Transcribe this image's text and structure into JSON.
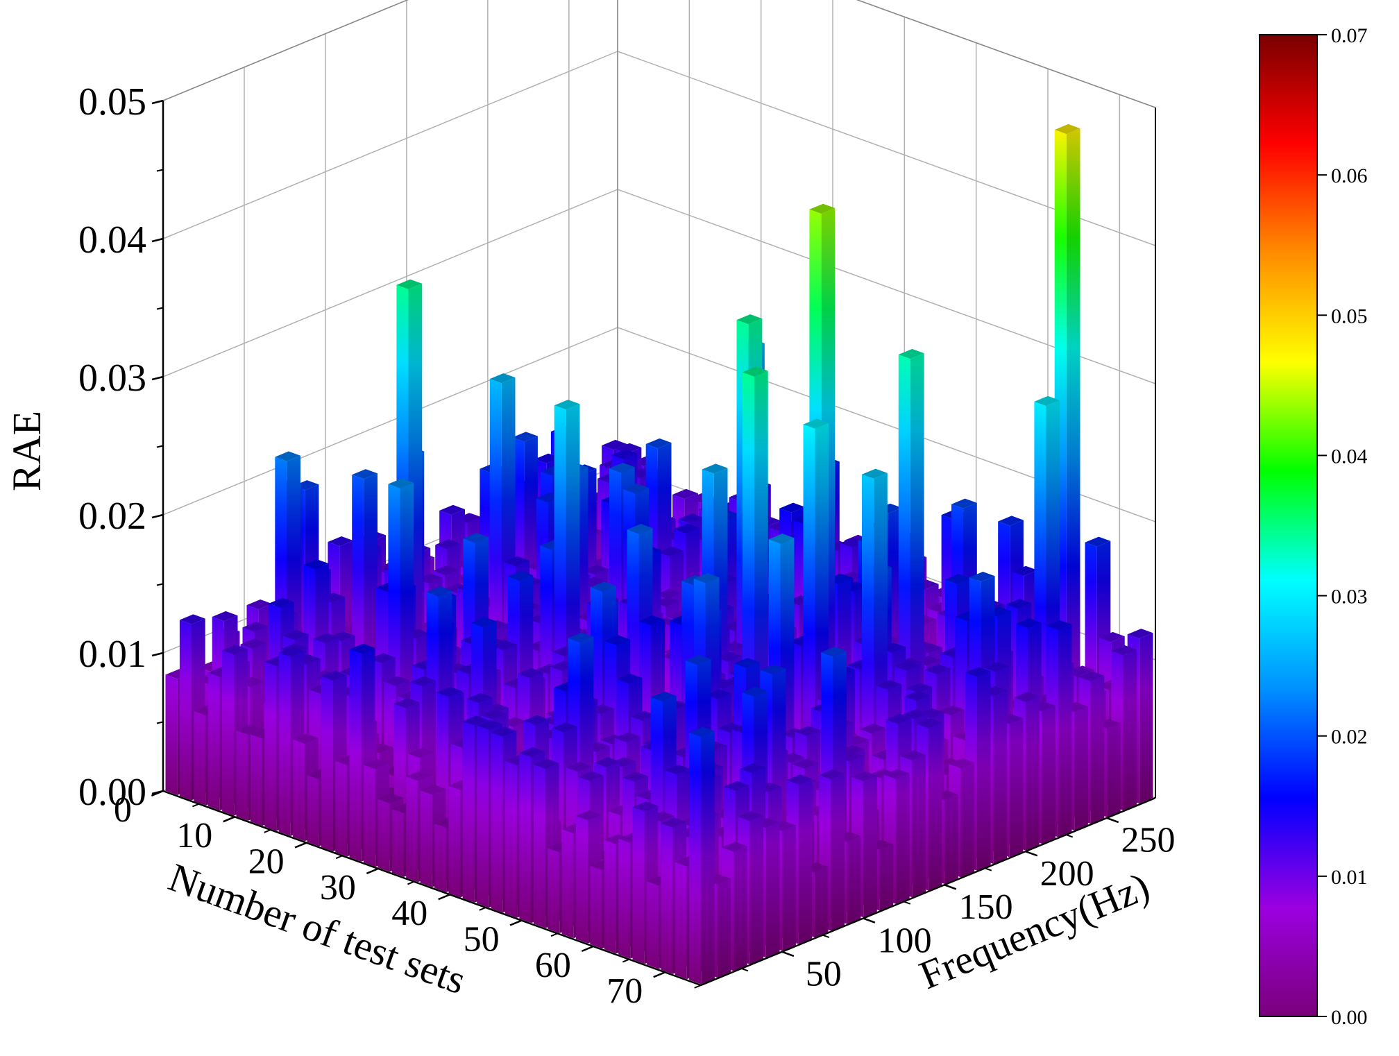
{
  "chart_data": {
    "type": "bar3d",
    "z_axis": {
      "label": "RAE",
      "range": [
        0.0,
        0.05
      ],
      "ticks": [
        "0.00",
        "0.01",
        "0.02",
        "0.03",
        "0.04",
        "0.05"
      ]
    },
    "x_axis": {
      "label": "Number of test sets",
      "range": [
        0,
        75
      ],
      "ticks": [
        "0",
        "10",
        "20",
        "30",
        "40",
        "50",
        "60",
        "70"
      ]
    },
    "y_axis": {
      "label": "Frequency(Hz)",
      "range": [
        0,
        280
      ],
      "ticks": [
        "50",
        "100",
        "150",
        "200",
        "250"
      ]
    },
    "colorbar": {
      "range": [
        0.0,
        0.07
      ],
      "ticks": [
        "0.00",
        "0.01",
        "0.02",
        "0.03",
        "0.04",
        "0.05",
        "0.06",
        "0.07"
      ],
      "colormap": [
        "#7a007a",
        "#9b00e0",
        "#0000ff",
        "#0090ff",
        "#00ffff",
        "#00ff00",
        "#ffff00",
        "#ff8c00",
        "#ff0000",
        "#7a0000"
      ]
    },
    "grid": true,
    "bars_note": "Dense 3D bar field; most RAE values between 0.005 and 0.02, with tall peaks listed below",
    "bars": [
      {
        "test_set": 2,
        "frequency": 30,
        "rae": 0.0105
      },
      {
        "test_set": 5,
        "frequency": 55,
        "rae": 0.0225
      },
      {
        "test_set": 8,
        "frequency": 85,
        "rae": 0.0205
      },
      {
        "test_set": 10,
        "frequency": 110,
        "rae": 0.0215
      },
      {
        "test_set": 13,
        "frequency": 100,
        "rae": 0.0345
      },
      {
        "test_set": 14,
        "frequency": 180,
        "rae": 0.0175
      },
      {
        "test_set": 17,
        "frequency": 140,
        "rae": 0.0265
      },
      {
        "test_set": 20,
        "frequency": 60,
        "rae": 0.0235
      },
      {
        "test_set": 22,
        "frequency": 210,
        "rae": 0.0195
      },
      {
        "test_set": 24,
        "frequency": 150,
        "rae": 0.021
      },
      {
        "test_set": 27,
        "frequency": 250,
        "rae": 0.0255
      },
      {
        "test_set": 30,
        "frequency": 40,
        "rae": 0.0185
      },
      {
        "test_set": 32,
        "frequency": 160,
        "rae": 0.016
      },
      {
        "test_set": 33,
        "frequency": 110,
        "rae": 0.029
      },
      {
        "test_set": 35,
        "frequency": 200,
        "rae": 0.017
      },
      {
        "test_set": 38,
        "frequency": 270,
        "rae": 0.0105
      },
      {
        "test_set": 40,
        "frequency": 120,
        "rae": 0.021
      },
      {
        "test_set": 42,
        "frequency": 180,
        "rae": 0.024
      },
      {
        "test_set": 44,
        "frequency": 80,
        "rae": 0.0195
      },
      {
        "test_set": 45,
        "frequency": 165,
        "rae": 0.0345
      },
      {
        "test_set": 47,
        "frequency": 135,
        "rae": 0.0255
      },
      {
        "test_set": 49,
        "frequency": 225,
        "rae": 0.013
      },
      {
        "test_set": 51,
        "frequency": 230,
        "rae": 0.019
      },
      {
        "test_set": 52,
        "frequency": 175,
        "rae": 0.0435
      },
      {
        "test_set": 54,
        "frequency": 130,
        "rae": 0.0345
      },
      {
        "test_set": 55,
        "frequency": 95,
        "rae": 0.021
      },
      {
        "test_set": 57,
        "frequency": 250,
        "rae": 0.0195
      },
      {
        "test_set": 58,
        "frequency": 150,
        "rae": 0.0305
      },
      {
        "test_set": 60,
        "frequency": 200,
        "rae": 0.0335
      },
      {
        "test_set": 61,
        "frequency": 120,
        "rae": 0.024
      },
      {
        "test_set": 63,
        "frequency": 60,
        "rae": 0.0185
      },
      {
        "test_set": 64,
        "frequency": 160,
        "rae": 0.0275
      },
      {
        "test_set": 66,
        "frequency": 270,
        "rae": 0.0475
      },
      {
        "test_set": 68,
        "frequency": 200,
        "rae": 0.016
      },
      {
        "test_set": 70,
        "frequency": 240,
        "rae": 0.03
      },
      {
        "test_set": 72,
        "frequency": 100,
        "rae": 0.019
      },
      {
        "test_set": 74,
        "frequency": 230,
        "rae": 0.015
      }
    ]
  }
}
